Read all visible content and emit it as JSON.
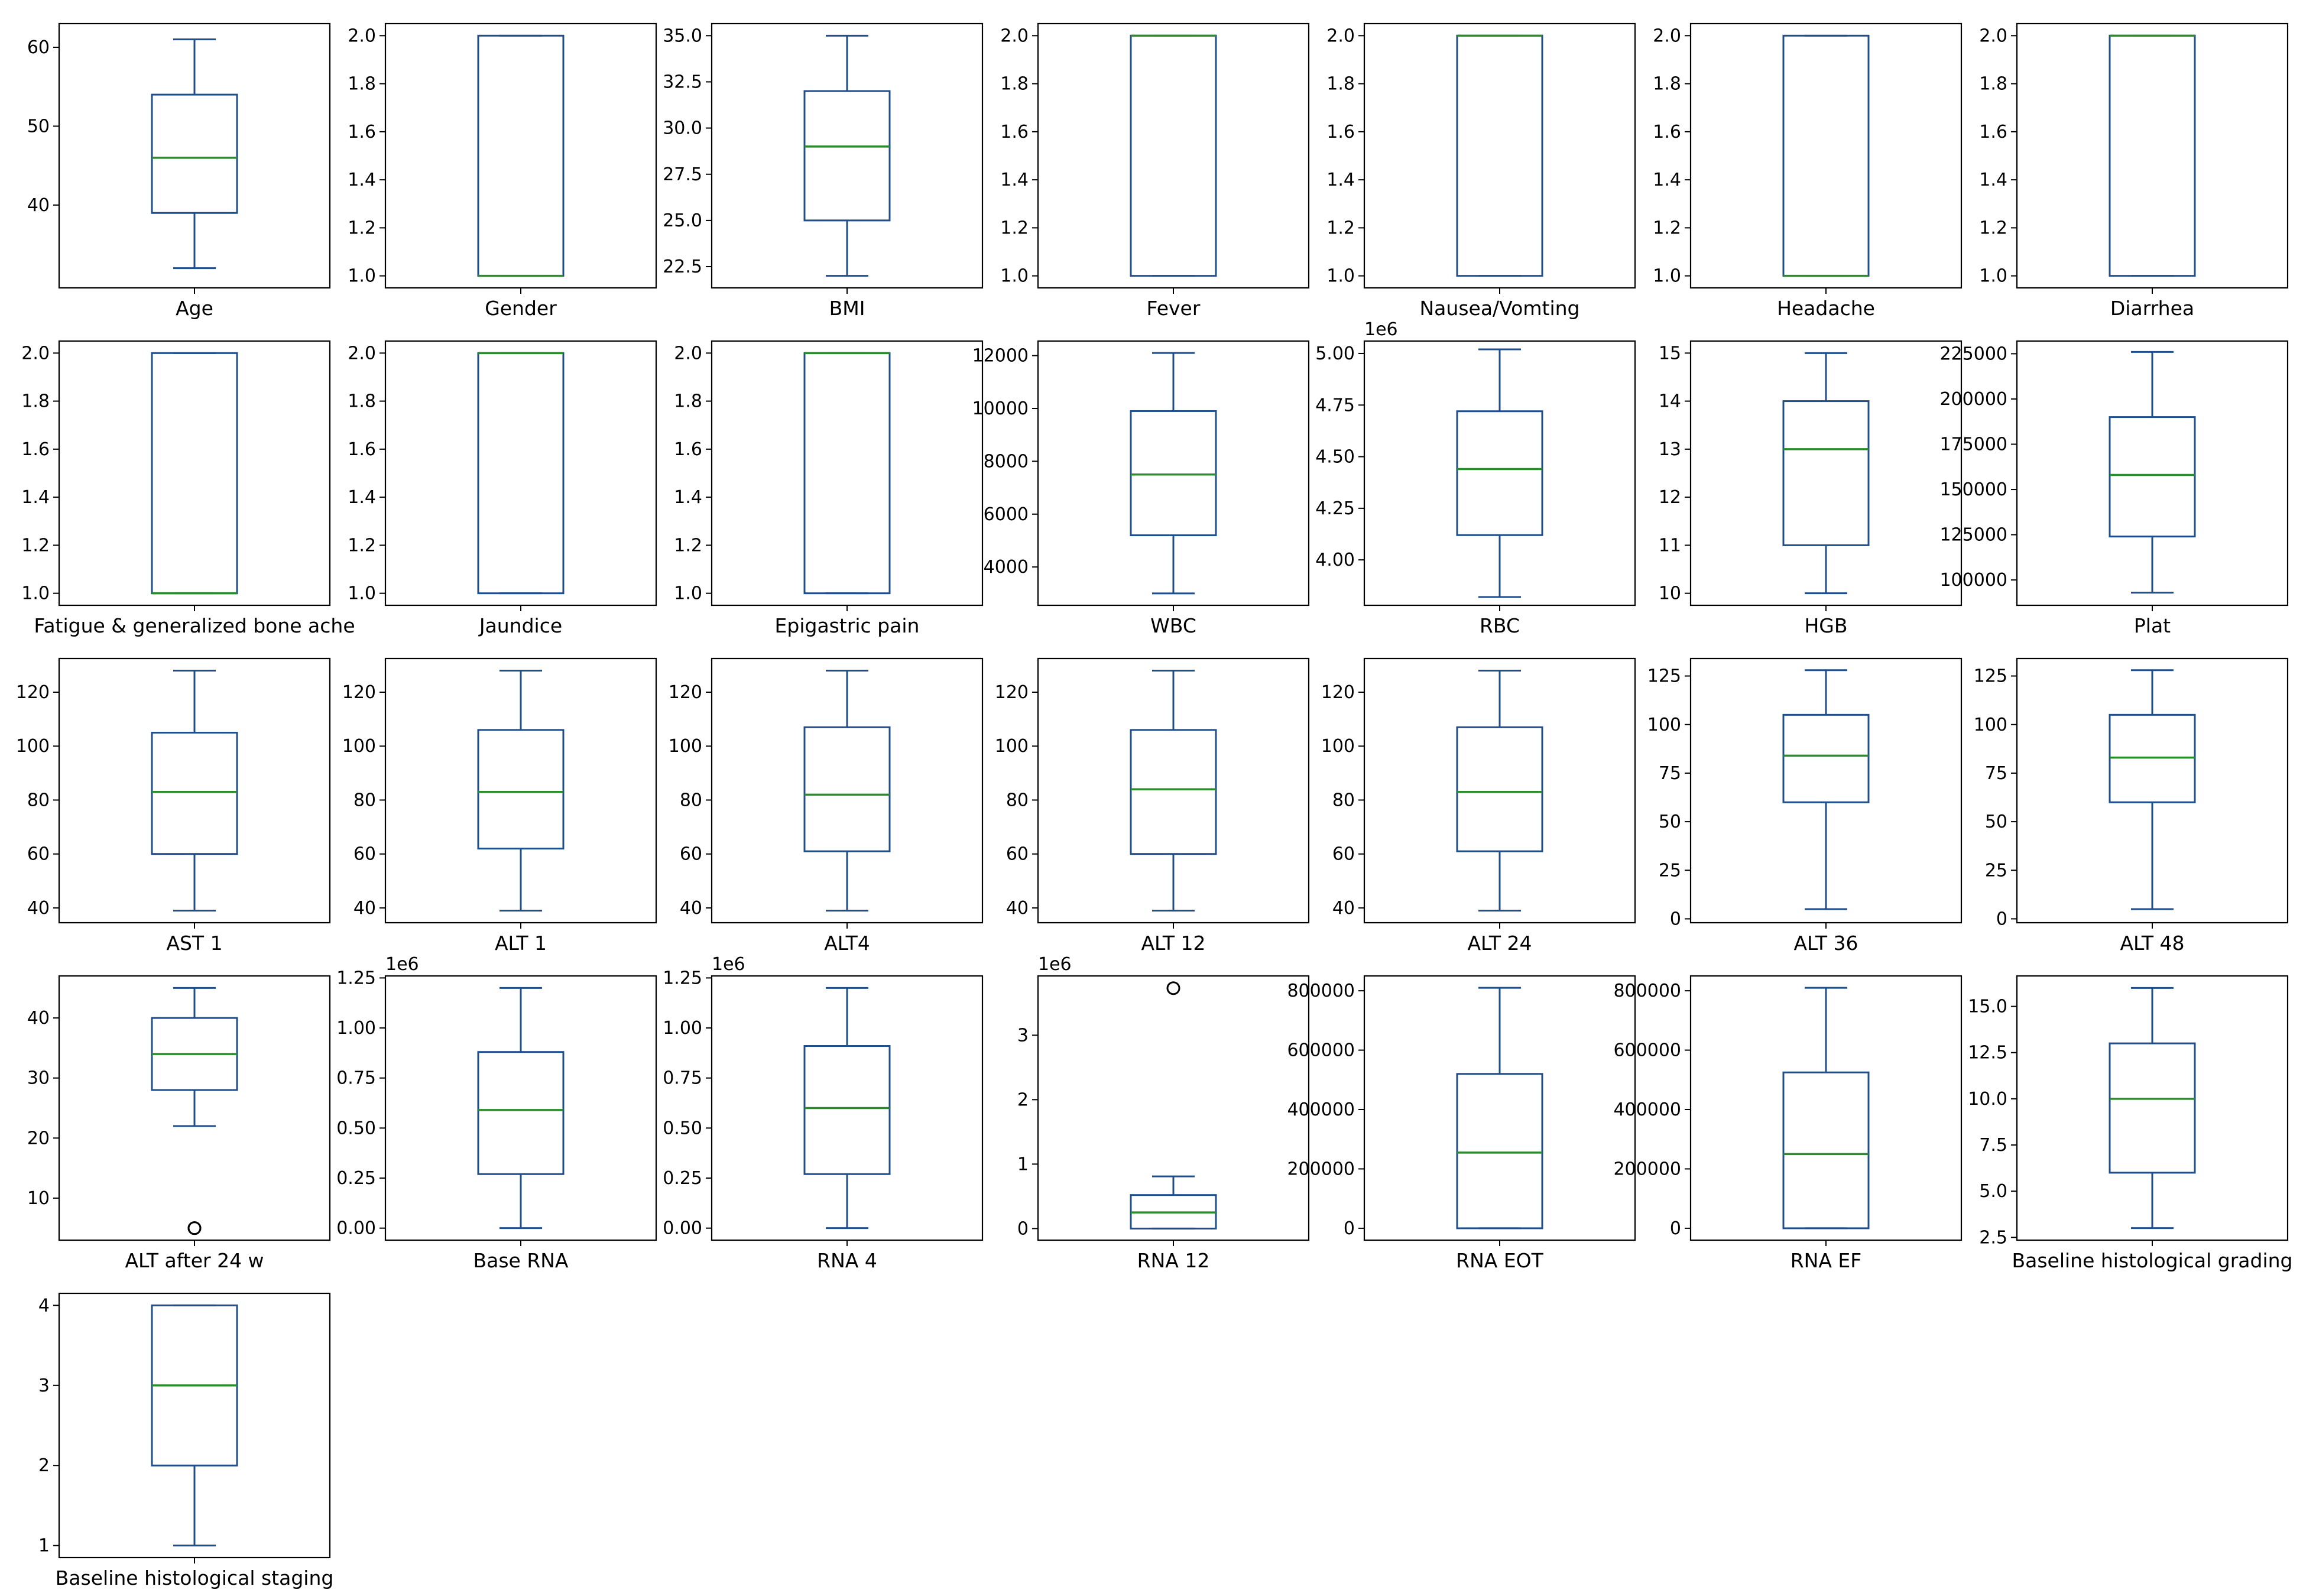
{
  "colors": {
    "box": "#1f4e8c",
    "median": "#2a8c2a",
    "axes": "#000000",
    "text": "#000000",
    "background": "#ffffff"
  },
  "chart_data": [
    {
      "type": "box",
      "xlabel": "Age",
      "ylim": [
        29.5,
        63
      ],
      "yticks": [
        "40",
        "50",
        "60"
      ],
      "ytick_values": [
        40,
        50,
        60
      ],
      "whisker_low": 32,
      "q1": 39,
      "median": 46,
      "q3": 54,
      "whisker_high": 61,
      "outliers": [],
      "offset_label": ""
    },
    {
      "type": "box",
      "xlabel": "Gender",
      "ylim": [
        0.95,
        2.05
      ],
      "yticks": [
        "1.0",
        "1.2",
        "1.4",
        "1.6",
        "1.8",
        "2.0"
      ],
      "ytick_values": [
        1.0,
        1.2,
        1.4,
        1.6,
        1.8,
        2.0
      ],
      "whisker_low": 1,
      "q1": 1,
      "median": 1,
      "q3": 2,
      "whisker_high": 2,
      "outliers": [],
      "offset_label": ""
    },
    {
      "type": "box",
      "xlabel": "BMI",
      "ylim": [
        21.35,
        35.65
      ],
      "yticks": [
        "22.5",
        "25.0",
        "27.5",
        "30.0",
        "32.5",
        "35.0"
      ],
      "ytick_values": [
        22.5,
        25.0,
        27.5,
        30.0,
        32.5,
        35.0
      ],
      "whisker_low": 22,
      "q1": 25,
      "median": 29,
      "q3": 32,
      "whisker_high": 35,
      "outliers": [],
      "offset_label": ""
    },
    {
      "type": "box",
      "xlabel": "Fever",
      "ylim": [
        0.95,
        2.05
      ],
      "yticks": [
        "1.0",
        "1.2",
        "1.4",
        "1.6",
        "1.8",
        "2.0"
      ],
      "ytick_values": [
        1.0,
        1.2,
        1.4,
        1.6,
        1.8,
        2.0
      ],
      "whisker_low": 1,
      "q1": 1,
      "median": 2,
      "q3": 2,
      "whisker_high": 2,
      "outliers": [],
      "offset_label": ""
    },
    {
      "type": "box",
      "xlabel": "Nausea/Vomting",
      "ylim": [
        0.95,
        2.05
      ],
      "yticks": [
        "1.0",
        "1.2",
        "1.4",
        "1.6",
        "1.8",
        "2.0"
      ],
      "ytick_values": [
        1.0,
        1.2,
        1.4,
        1.6,
        1.8,
        2.0
      ],
      "whisker_low": 1,
      "q1": 1,
      "median": 2,
      "q3": 2,
      "whisker_high": 2,
      "outliers": [],
      "offset_label": ""
    },
    {
      "type": "box",
      "xlabel": "Headache",
      "ylim": [
        0.95,
        2.05
      ],
      "yticks": [
        "1.0",
        "1.2",
        "1.4",
        "1.6",
        "1.8",
        "2.0"
      ],
      "ytick_values": [
        1.0,
        1.2,
        1.4,
        1.6,
        1.8,
        2.0
      ],
      "whisker_low": 1,
      "q1": 1,
      "median": 1,
      "q3": 2,
      "whisker_high": 2,
      "outliers": [],
      "offset_label": ""
    },
    {
      "type": "box",
      "xlabel": "Diarrhea",
      "ylim": [
        0.95,
        2.05
      ],
      "yticks": [
        "1.0",
        "1.2",
        "1.4",
        "1.6",
        "1.8",
        "2.0"
      ],
      "ytick_values": [
        1.0,
        1.2,
        1.4,
        1.6,
        1.8,
        2.0
      ],
      "whisker_low": 1,
      "q1": 1,
      "median": 2,
      "q3": 2,
      "whisker_high": 2,
      "outliers": [],
      "offset_label": ""
    },
    {
      "type": "box",
      "xlabel": "Fatigue & generalized bone ache",
      "ylim": [
        0.95,
        2.05
      ],
      "yticks": [
        "1.0",
        "1.2",
        "1.4",
        "1.6",
        "1.8",
        "2.0"
      ],
      "ytick_values": [
        1.0,
        1.2,
        1.4,
        1.6,
        1.8,
        2.0
      ],
      "whisker_low": 1,
      "q1": 1,
      "median": 1,
      "q3": 2,
      "whisker_high": 2,
      "outliers": [],
      "offset_label": ""
    },
    {
      "type": "box",
      "xlabel": "Jaundice",
      "ylim": [
        0.95,
        2.05
      ],
      "yticks": [
        "1.0",
        "1.2",
        "1.4",
        "1.6",
        "1.8",
        "2.0"
      ],
      "ytick_values": [
        1.0,
        1.2,
        1.4,
        1.6,
        1.8,
        2.0
      ],
      "whisker_low": 1,
      "q1": 1,
      "median": 2,
      "q3": 2,
      "whisker_high": 2,
      "outliers": [],
      "offset_label": ""
    },
    {
      "type": "box",
      "xlabel": "Epigastric pain",
      "ylim": [
        0.95,
        2.05
      ],
      "yticks": [
        "1.0",
        "1.2",
        "1.4",
        "1.6",
        "1.8",
        "2.0"
      ],
      "ytick_values": [
        1.0,
        1.2,
        1.4,
        1.6,
        1.8,
        2.0
      ],
      "whisker_low": 1,
      "q1": 1,
      "median": 2,
      "q3": 2,
      "whisker_high": 2,
      "outliers": [],
      "offset_label": ""
    },
    {
      "type": "box",
      "xlabel": "WBC",
      "ylim": [
        2550,
        12550
      ],
      "yticks": [
        "4000",
        "6000",
        "8000",
        "10000",
        "12000"
      ],
      "ytick_values": [
        4000,
        6000,
        8000,
        10000,
        12000
      ],
      "whisker_low": 3000,
      "q1": 5200,
      "median": 7500,
      "q3": 9900,
      "whisker_high": 12100,
      "outliers": [],
      "offset_label": ""
    },
    {
      "type": "box",
      "xlabel": "RBC",
      "ylim": [
        3780000,
        5060000
      ],
      "yticks": [
        "4.00",
        "4.25",
        "4.50",
        "4.75",
        "5.00"
      ],
      "ytick_values": [
        4000000,
        4250000,
        4500000,
        4750000,
        5000000
      ],
      "whisker_low": 3820000,
      "q1": 4120000,
      "median": 4440000,
      "q3": 4720000,
      "whisker_high": 5020000,
      "outliers": [],
      "offset_label": "1e6"
    },
    {
      "type": "box",
      "xlabel": "HGB",
      "ylim": [
        9.75,
        15.25
      ],
      "yticks": [
        "10",
        "11",
        "12",
        "13",
        "14",
        "15"
      ],
      "ytick_values": [
        10,
        11,
        12,
        13,
        14,
        15
      ],
      "whisker_low": 10,
      "q1": 11,
      "median": 13,
      "q3": 14,
      "whisker_high": 15,
      "outliers": [],
      "offset_label": ""
    },
    {
      "type": "box",
      "xlabel": "Plat",
      "ylim": [
        86000,
        232000
      ],
      "yticks": [
        "100000",
        "125000",
        "150000",
        "175000",
        "200000",
        "225000"
      ],
      "ytick_values": [
        100000,
        125000,
        150000,
        175000,
        200000,
        225000
      ],
      "whisker_low": 93000,
      "q1": 124000,
      "median": 158000,
      "q3": 190000,
      "whisker_high": 226000,
      "outliers": [],
      "offset_label": ""
    },
    {
      "type": "box",
      "xlabel": "AST 1",
      "ylim": [
        34.5,
        132.5
      ],
      "yticks": [
        "40",
        "60",
        "80",
        "100",
        "120"
      ],
      "ytick_values": [
        40,
        60,
        80,
        100,
        120
      ],
      "whisker_low": 39,
      "q1": 60,
      "median": 83,
      "q3": 105,
      "whisker_high": 128,
      "outliers": [],
      "offset_label": ""
    },
    {
      "type": "box",
      "xlabel": "ALT 1",
      "ylim": [
        34.5,
        132.5
      ],
      "yticks": [
        "40",
        "60",
        "80",
        "100",
        "120"
      ],
      "ytick_values": [
        40,
        60,
        80,
        100,
        120
      ],
      "whisker_low": 39,
      "q1": 62,
      "median": 83,
      "q3": 106,
      "whisker_high": 128,
      "outliers": [],
      "offset_label": ""
    },
    {
      "type": "box",
      "xlabel": "ALT4",
      "ylim": [
        34.5,
        132.5
      ],
      "yticks": [
        "40",
        "60",
        "80",
        "100",
        "120"
      ],
      "ytick_values": [
        40,
        60,
        80,
        100,
        120
      ],
      "whisker_low": 39,
      "q1": 61,
      "median": 82,
      "q3": 107,
      "whisker_high": 128,
      "outliers": [],
      "offset_label": ""
    },
    {
      "type": "box",
      "xlabel": "ALT 12",
      "ylim": [
        34.5,
        132.5
      ],
      "yticks": [
        "40",
        "60",
        "80",
        "100",
        "120"
      ],
      "ytick_values": [
        40,
        60,
        80,
        100,
        120
      ],
      "whisker_low": 39,
      "q1": 60,
      "median": 84,
      "q3": 106,
      "whisker_high": 128,
      "outliers": [],
      "offset_label": ""
    },
    {
      "type": "box",
      "xlabel": "ALT 24",
      "ylim": [
        34.5,
        132.5
      ],
      "yticks": [
        "40",
        "60",
        "80",
        "100",
        "120"
      ],
      "ytick_values": [
        40,
        60,
        80,
        100,
        120
      ],
      "whisker_low": 39,
      "q1": 61,
      "median": 83,
      "q3": 107,
      "whisker_high": 128,
      "outliers": [],
      "offset_label": ""
    },
    {
      "type": "box",
      "xlabel": "ALT 36",
      "ylim": [
        -2,
        134
      ],
      "yticks": [
        "0",
        "25",
        "50",
        "75",
        "100",
        "125"
      ],
      "ytick_values": [
        0,
        25,
        50,
        75,
        100,
        125
      ],
      "whisker_low": 5,
      "q1": 60,
      "median": 84,
      "q3": 105,
      "whisker_high": 128,
      "outliers": [],
      "offset_label": ""
    },
    {
      "type": "box",
      "xlabel": "ALT 48",
      "ylim": [
        -2,
        134
      ],
      "yticks": [
        "0",
        "25",
        "50",
        "75",
        "100",
        "125"
      ],
      "ytick_values": [
        0,
        25,
        50,
        75,
        100,
        125
      ],
      "whisker_low": 5,
      "q1": 60,
      "median": 83,
      "q3": 105,
      "whisker_high": 128,
      "outliers": [],
      "offset_label": ""
    },
    {
      "type": "box",
      "xlabel": "ALT after 24 w",
      "ylim": [
        3,
        47
      ],
      "yticks": [
        "10",
        "20",
        "30",
        "40"
      ],
      "ytick_values": [
        10,
        20,
        30,
        40
      ],
      "whisker_low": 22,
      "q1": 28,
      "median": 34,
      "q3": 40,
      "whisker_high": 45,
      "outliers": [
        5,
        5
      ],
      "offset_label": ""
    },
    {
      "type": "box",
      "xlabel": "Base RNA",
      "ylim": [
        -60000,
        1260000
      ],
      "yticks": [
        "0.00",
        "0.25",
        "0.50",
        "0.75",
        "1.00",
        "1.25"
      ],
      "ytick_values": [
        0,
        250000,
        500000,
        750000,
        1000000,
        1250000
      ],
      "whisker_low": 0,
      "q1": 270000,
      "median": 590000,
      "q3": 880000,
      "whisker_high": 1200000,
      "outliers": [],
      "offset_label": "1e6"
    },
    {
      "type": "box",
      "xlabel": "RNA 4",
      "ylim": [
        -60000,
        1260000
      ],
      "yticks": [
        "0.00",
        "0.25",
        "0.50",
        "0.75",
        "1.00",
        "1.25"
      ],
      "ytick_values": [
        0,
        250000,
        500000,
        750000,
        1000000,
        1250000
      ],
      "whisker_low": 0,
      "q1": 270000,
      "median": 600000,
      "q3": 910000,
      "whisker_high": 1200000,
      "outliers": [],
      "offset_label": "1e6"
    },
    {
      "type": "box",
      "xlabel": "RNA 12",
      "ylim": [
        -180000,
        3920000
      ],
      "yticks": [
        "0",
        "1",
        "2",
        "3"
      ],
      "ytick_values": [
        0,
        1000000,
        2000000,
        3000000
      ],
      "whisker_low": 0,
      "q1": 0,
      "median": 250000,
      "q3": 520000,
      "whisker_high": 810000,
      "outliers": [
        3730000
      ],
      "offset_label": "1e6"
    },
    {
      "type": "box",
      "xlabel": "RNA EOT",
      "ylim": [
        -40000,
        850000
      ],
      "yticks": [
        "0",
        "200000",
        "400000",
        "600000",
        "800000"
      ],
      "ytick_values": [
        0,
        200000,
        400000,
        600000,
        800000
      ],
      "whisker_low": 0,
      "q1": 0,
      "median": 255000,
      "q3": 520000,
      "whisker_high": 810000,
      "outliers": [],
      "offset_label": ""
    },
    {
      "type": "box",
      "xlabel": "RNA EF",
      "ylim": [
        -40000,
        850000
      ],
      "yticks": [
        "0",
        "200000",
        "400000",
        "600000",
        "800000"
      ],
      "ytick_values": [
        0,
        200000,
        400000,
        600000,
        800000
      ],
      "whisker_low": 0,
      "q1": 0,
      "median": 250000,
      "q3": 525000,
      "whisker_high": 810000,
      "outliers": [],
      "offset_label": ""
    },
    {
      "type": "box",
      "xlabel": "Baseline histological grading",
      "ylim": [
        2.35,
        16.65
      ],
      "yticks": [
        "2.5",
        "5.0",
        "7.5",
        "10.0",
        "12.5",
        "15.0"
      ],
      "ytick_values": [
        2.5,
        5.0,
        7.5,
        10.0,
        12.5,
        15.0
      ],
      "whisker_low": 3,
      "q1": 6,
      "median": 10,
      "q3": 13,
      "whisker_high": 16,
      "outliers": [],
      "offset_label": ""
    },
    {
      "type": "box",
      "xlabel": "Baseline histological staging",
      "ylim": [
        0.85,
        4.15
      ],
      "yticks": [
        "1",
        "2",
        "3",
        "4"
      ],
      "ytick_values": [
        1,
        2,
        3,
        4
      ],
      "whisker_low": 1,
      "q1": 2,
      "median": 3,
      "q3": 4,
      "whisker_high": 4,
      "outliers": [],
      "offset_label": ""
    }
  ]
}
